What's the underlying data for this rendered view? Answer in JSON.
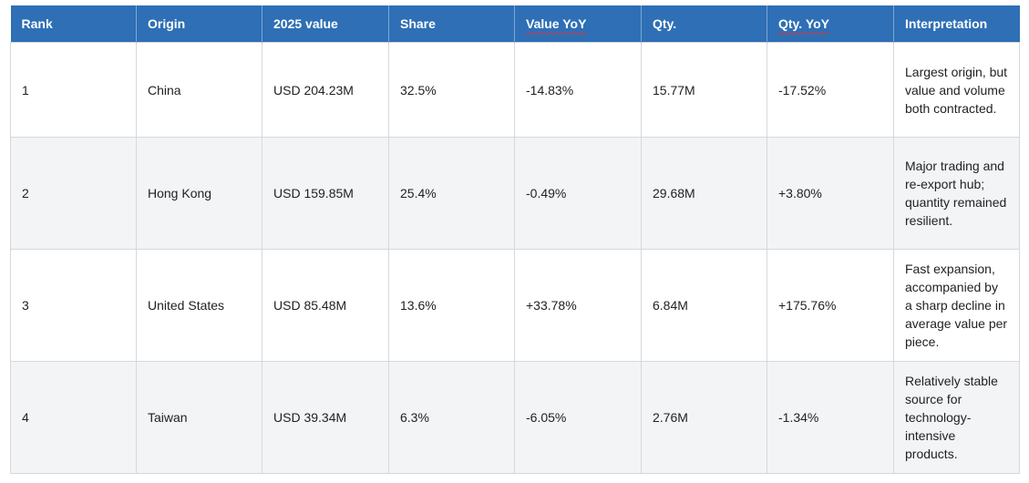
{
  "table": {
    "headers": [
      "Rank",
      "Origin",
      "2025 value",
      "Share",
      "Value YoY",
      "Qty.",
      "Qty. YoY",
      "Interpretation"
    ],
    "rows": [
      {
        "rank": "1",
        "origin": "China",
        "value_2025": "USD 204.23M",
        "share": "32.5%",
        "value_yoy": "-14.83%",
        "qty": "15.77M",
        "qty_yoy": "-17.52%",
        "interpretation": "Largest origin, but value and volume both contracted."
      },
      {
        "rank": "2",
        "origin": "Hong Kong",
        "value_2025": "USD 159.85M",
        "share": "25.4%",
        "value_yoy": "-0.49%",
        "qty": "29.68M",
        "qty_yoy": "+3.80%",
        "interpretation": "Major trading and re-export hub; quantity remained resilient."
      },
      {
        "rank": "3",
        "origin": "United States",
        "value_2025": "USD 85.48M",
        "share": "13.6%",
        "value_yoy": "+33.78%",
        "qty": "6.84M",
        "qty_yoy": "+175.76%",
        "interpretation": "Fast expansion, accompanied by a sharp decline in average value per piece."
      },
      {
        "rank": "4",
        "origin": "Taiwan",
        "value_2025": "USD 39.34M",
        "share": "6.3%",
        "value_yoy": "-6.05%",
        "qty": "2.76M",
        "qty_yoy": "-1.34%",
        "interpretation": "Relatively stable source for technology-intensive products."
      }
    ]
  },
  "colors": {
    "header_bg": "#2e6fb5",
    "header_text": "#ffffff",
    "row_alt_bg": "#f3f4f6",
    "border": "#d5d8dc",
    "spellcheck_underline": "#d23a3a"
  }
}
